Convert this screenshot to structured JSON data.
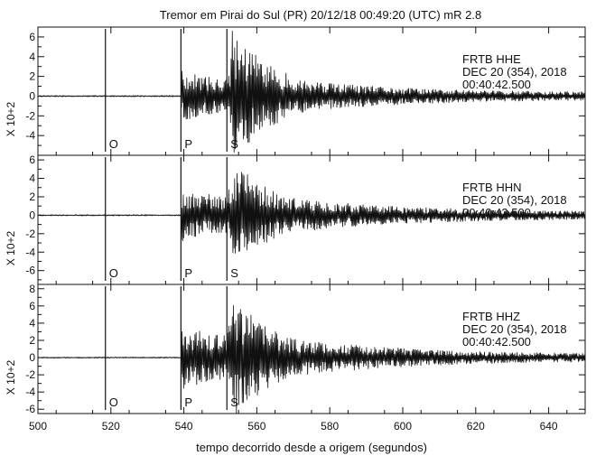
{
  "chart_data": {
    "type": "line",
    "title": "Tremor em Pirai do Sul (PR) 20/12/18 00:49:20 (UTC) mR 2.8",
    "xlabel": "tempo decorrido desde a origem (segundos)",
    "xlim": [
      500,
      650
    ],
    "xticks": [
      500,
      520,
      540,
      560,
      580,
      600,
      620,
      640
    ],
    "phase_markers": [
      {
        "label": "O",
        "time": 518.5
      },
      {
        "label": "P",
        "time": 539.2
      },
      {
        "label": "S",
        "time": 551.8
      }
    ],
    "panels": [
      {
        "ylabel": "X 10+2",
        "ylim": [
          -6,
          7
        ],
        "yticks": [
          -4,
          -2,
          0,
          2,
          4,
          6
        ],
        "station": "FRTB  HHE",
        "date": "DEC 20 (354), 2018",
        "time": "00:40:42.500",
        "p_amplitude": 2.6,
        "s_amplitude": 6.5,
        "seed": 11
      },
      {
        "ylabel": "X 10+2",
        "ylim": [
          -7.5,
          6.5
        ],
        "yticks": [
          -6,
          -4,
          -2,
          0,
          2,
          4,
          6
        ],
        "station": "FRTB  HHN",
        "date": "DEC 20 (354), 2018",
        "time": "00:40:42.500",
        "p_amplitude": 3.0,
        "s_amplitude": 6.0,
        "seed": 23
      },
      {
        "ylabel": "X 10+2",
        "ylim": [
          -6.5,
          8.5
        ],
        "yticks": [
          -6,
          -4,
          -2,
          0,
          2,
          4,
          6,
          8
        ],
        "station": "FRTB  HHZ",
        "date": "DEC 20 (354), 2018",
        "time": "00:40:42.500",
        "p_amplitude": 3.8,
        "s_amplitude": 7.0,
        "seed": 37
      }
    ]
  }
}
